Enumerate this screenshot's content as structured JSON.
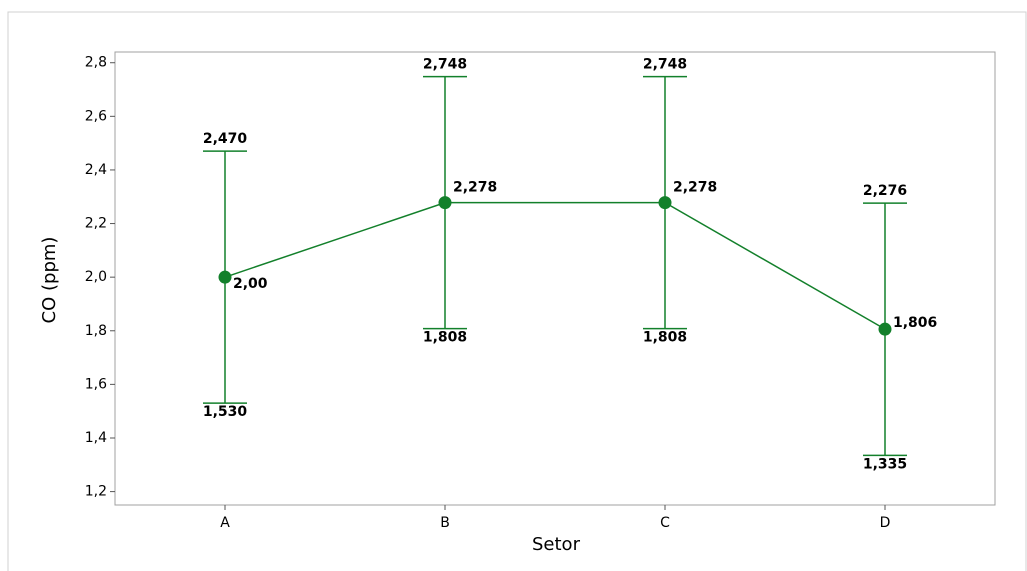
{
  "chart_data": {
    "type": "interval",
    "x_label": "Setor",
    "y_label": "CO (ppm)",
    "categories": [
      "A",
      "B",
      "C",
      "D"
    ],
    "series": [
      {
        "color": "#13802b",
        "values": [
          2.0,
          2.278,
          2.278,
          1.806
        ],
        "value_labels": [
          "2,00",
          "2,278",
          "2,278",
          "1,806"
        ],
        "upper": [
          2.47,
          2.748,
          2.748,
          2.276
        ],
        "upper_labels": [
          "2,470",
          "2,748",
          "2,748",
          "2,276"
        ],
        "lower": [
          1.53,
          1.808,
          1.808,
          1.335
        ],
        "lower_labels": [
          "1,530",
          "1,808",
          "1,808",
          "1,335"
        ]
      }
    ],
    "ylim": [
      1.15,
      2.84
    ],
    "yticks": [
      {
        "value": 1.2,
        "label": "1,2"
      },
      {
        "value": 1.4,
        "label": "1,4"
      },
      {
        "value": 1.6,
        "label": "1,6"
      },
      {
        "value": 1.8,
        "label": "1,8"
      },
      {
        "value": 2.0,
        "label": "2,0"
      },
      {
        "value": 2.2,
        "label": "2,2"
      },
      {
        "value": 2.4,
        "label": "2,4"
      },
      {
        "value": 2.6,
        "label": "2,6"
      },
      {
        "value": 2.8,
        "label": "2,8"
      }
    ]
  }
}
